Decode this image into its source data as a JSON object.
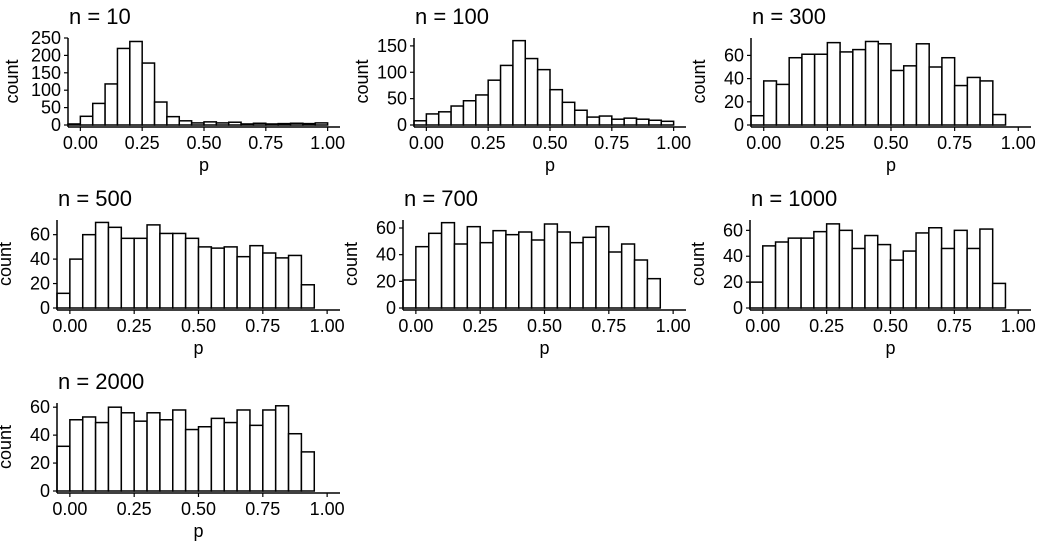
{
  "chart_data": [
    {
      "type": "bar",
      "title": "n = 10",
      "xlabel": "p",
      "ylabel": "count",
      "xlim": [
        -0.05,
        1.05
      ],
      "ylim": [
        0,
        250
      ],
      "xticks": [
        0,
        0.25,
        0.5,
        0.75,
        1
      ],
      "xtick_labels": [
        "0.00",
        "0.25",
        "0.50",
        "0.75",
        "1.00"
      ],
      "yticks": [
        0,
        50,
        100,
        150,
        200,
        250
      ],
      "ytick_labels": [
        "0",
        "50",
        "100",
        "150",
        "200",
        "250"
      ],
      "bin_width": 0.05,
      "bin_centers": [
        -0.025,
        0.025,
        0.075,
        0.125,
        0.175,
        0.225,
        0.275,
        0.325,
        0.375,
        0.425,
        0.475,
        0.525,
        0.575,
        0.625,
        0.675,
        0.725,
        0.775,
        0.825,
        0.875,
        0.925,
        0.975
      ],
      "values": [
        3,
        25,
        62,
        118,
        220,
        240,
        178,
        66,
        24,
        12,
        6,
        9,
        6,
        8,
        3,
        5,
        3,
        4,
        5,
        4,
        6
      ]
    },
    {
      "type": "bar",
      "title": "n = 100",
      "xlabel": "p",
      "ylabel": "count",
      "xlim": [
        -0.05,
        1.05
      ],
      "ylim": [
        0,
        165
      ],
      "xticks": [
        0,
        0.25,
        0.5,
        0.75,
        1
      ],
      "xtick_labels": [
        "0.00",
        "0.25",
        "0.50",
        "0.75",
        "1.00"
      ],
      "yticks": [
        0,
        50,
        100,
        150
      ],
      "ytick_labels": [
        "0",
        "50",
        "100",
        "150"
      ],
      "bin_width": 0.05,
      "bin_centers": [
        -0.025,
        0.025,
        0.075,
        0.125,
        0.175,
        0.225,
        0.275,
        0.325,
        0.375,
        0.425,
        0.475,
        0.525,
        0.575,
        0.625,
        0.675,
        0.725,
        0.775,
        0.825,
        0.875,
        0.925,
        0.975
      ],
      "values": [
        8,
        21,
        25,
        36,
        46,
        57,
        85,
        113,
        160,
        126,
        105,
        67,
        43,
        28,
        15,
        17,
        11,
        13,
        11,
        9,
        7
      ]
    },
    {
      "type": "bar",
      "title": "n = 300",
      "xlabel": "p",
      "ylabel": "count",
      "xlim": [
        -0.05,
        1.05
      ],
      "ylim": [
        0,
        75
      ],
      "xticks": [
        0,
        0.25,
        0.5,
        0.75,
        1
      ],
      "xtick_labels": [
        "0.00",
        "0.25",
        "0.50",
        "0.75",
        "1.00"
      ],
      "yticks": [
        0,
        20,
        40,
        60
      ],
      "ytick_labels": [
        "0",
        "20",
        "40",
        "60"
      ],
      "bin_width": 0.05,
      "bin_centers": [
        -0.025,
        0.025,
        0.075,
        0.125,
        0.175,
        0.225,
        0.275,
        0.325,
        0.375,
        0.425,
        0.475,
        0.525,
        0.575,
        0.625,
        0.675,
        0.725,
        0.775,
        0.825,
        0.875,
        0.925,
        0.975
      ],
      "values": [
        8,
        38,
        35,
        58,
        61,
        61,
        71,
        63,
        65,
        72,
        70,
        47,
        51,
        70,
        50,
        58,
        34,
        41,
        38,
        9,
        0
      ]
    },
    {
      "type": "bar",
      "title": "n = 500",
      "xlabel": "p",
      "ylabel": "count",
      "xlim": [
        -0.05,
        1.05
      ],
      "ylim": [
        0,
        72
      ],
      "xticks": [
        0,
        0.25,
        0.5,
        0.75,
        1
      ],
      "xtick_labels": [
        "0.00",
        "0.25",
        "0.50",
        "0.75",
        "1.00"
      ],
      "yticks": [
        0,
        20,
        40,
        60
      ],
      "ytick_labels": [
        "0",
        "20",
        "40",
        "60"
      ],
      "bin_width": 0.05,
      "bin_centers": [
        -0.025,
        0.025,
        0.075,
        0.125,
        0.175,
        0.225,
        0.275,
        0.325,
        0.375,
        0.425,
        0.475,
        0.525,
        0.575,
        0.625,
        0.675,
        0.725,
        0.775,
        0.825,
        0.875,
        0.925,
        0.975
      ],
      "values": [
        12,
        40,
        60,
        70,
        66,
        57,
        57,
        68,
        61,
        61,
        57,
        50,
        49,
        50,
        42,
        51,
        45,
        41,
        43,
        19,
        0
      ]
    },
    {
      "type": "bar",
      "title": "n = 700",
      "xlabel": "p",
      "ylabel": "count",
      "xlim": [
        -0.05,
        1.05
      ],
      "ylim": [
        0,
        66
      ],
      "xticks": [
        0,
        0.25,
        0.5,
        0.75,
        1
      ],
      "xtick_labels": [
        "0.00",
        "0.25",
        "0.50",
        "0.75",
        "1.00"
      ],
      "yticks": [
        0,
        20,
        40,
        60
      ],
      "ytick_labels": [
        "0",
        "20",
        "40",
        "60"
      ],
      "bin_width": 0.05,
      "bin_centers": [
        -0.025,
        0.025,
        0.075,
        0.125,
        0.175,
        0.225,
        0.275,
        0.325,
        0.375,
        0.425,
        0.475,
        0.525,
        0.575,
        0.625,
        0.675,
        0.725,
        0.775,
        0.825,
        0.875,
        0.925,
        0.975
      ],
      "values": [
        21,
        46,
        56,
        64,
        48,
        61,
        49,
        58,
        55,
        57,
        51,
        63,
        57,
        49,
        53,
        61,
        42,
        48,
        36,
        22,
        0
      ]
    },
    {
      "type": "bar",
      "title": "n = 1000",
      "xlabel": "p",
      "ylabel": "count",
      "xlim": [
        -0.05,
        1.05
      ],
      "ylim": [
        0,
        68
      ],
      "xticks": [
        0,
        0.25,
        0.5,
        0.75,
        1
      ],
      "xtick_labels": [
        "0.00",
        "0.25",
        "0.50",
        "0.75",
        "1.00"
      ],
      "yticks": [
        0,
        20,
        40,
        60
      ],
      "ytick_labels": [
        "0",
        "20",
        "40",
        "60"
      ],
      "bin_width": 0.05,
      "bin_centers": [
        -0.025,
        0.025,
        0.075,
        0.125,
        0.175,
        0.225,
        0.275,
        0.325,
        0.375,
        0.425,
        0.475,
        0.525,
        0.575,
        0.625,
        0.675,
        0.725,
        0.775,
        0.825,
        0.875,
        0.925,
        0.975
      ],
      "values": [
        20,
        48,
        51,
        54,
        54,
        59,
        65,
        60,
        46,
        56,
        49,
        37,
        44,
        58,
        62,
        46,
        60,
        46,
        61,
        19,
        0
      ]
    },
    {
      "type": "bar",
      "title": "n = 2000",
      "xlabel": "p",
      "ylabel": "count",
      "xlim": [
        -0.05,
        1.05
      ],
      "ylim": [
        0,
        63
      ],
      "xticks": [
        0,
        0.25,
        0.5,
        0.75,
        1
      ],
      "xtick_labels": [
        "0.00",
        "0.25",
        "0.50",
        "0.75",
        "1.00"
      ],
      "yticks": [
        0,
        20,
        40,
        60
      ],
      "ytick_labels": [
        "0",
        "20",
        "40",
        "60"
      ],
      "bin_width": 0.05,
      "bin_centers": [
        -0.025,
        0.025,
        0.075,
        0.125,
        0.175,
        0.225,
        0.275,
        0.325,
        0.375,
        0.425,
        0.475,
        0.525,
        0.575,
        0.625,
        0.675,
        0.725,
        0.775,
        0.825,
        0.875,
        0.925,
        0.975
      ],
      "values": [
        32,
        51,
        53,
        49,
        60,
        56,
        50,
        56,
        51,
        58,
        44,
        46,
        52,
        49,
        58,
        47,
        58,
        61,
        41,
        28,
        0
      ]
    }
  ],
  "style": {
    "bar_fill": "#ffffff",
    "bar_stroke": "#000000",
    "axis_color": "#000000",
    "text_color": "#000000",
    "background": "#ffffff",
    "grid": false
  }
}
